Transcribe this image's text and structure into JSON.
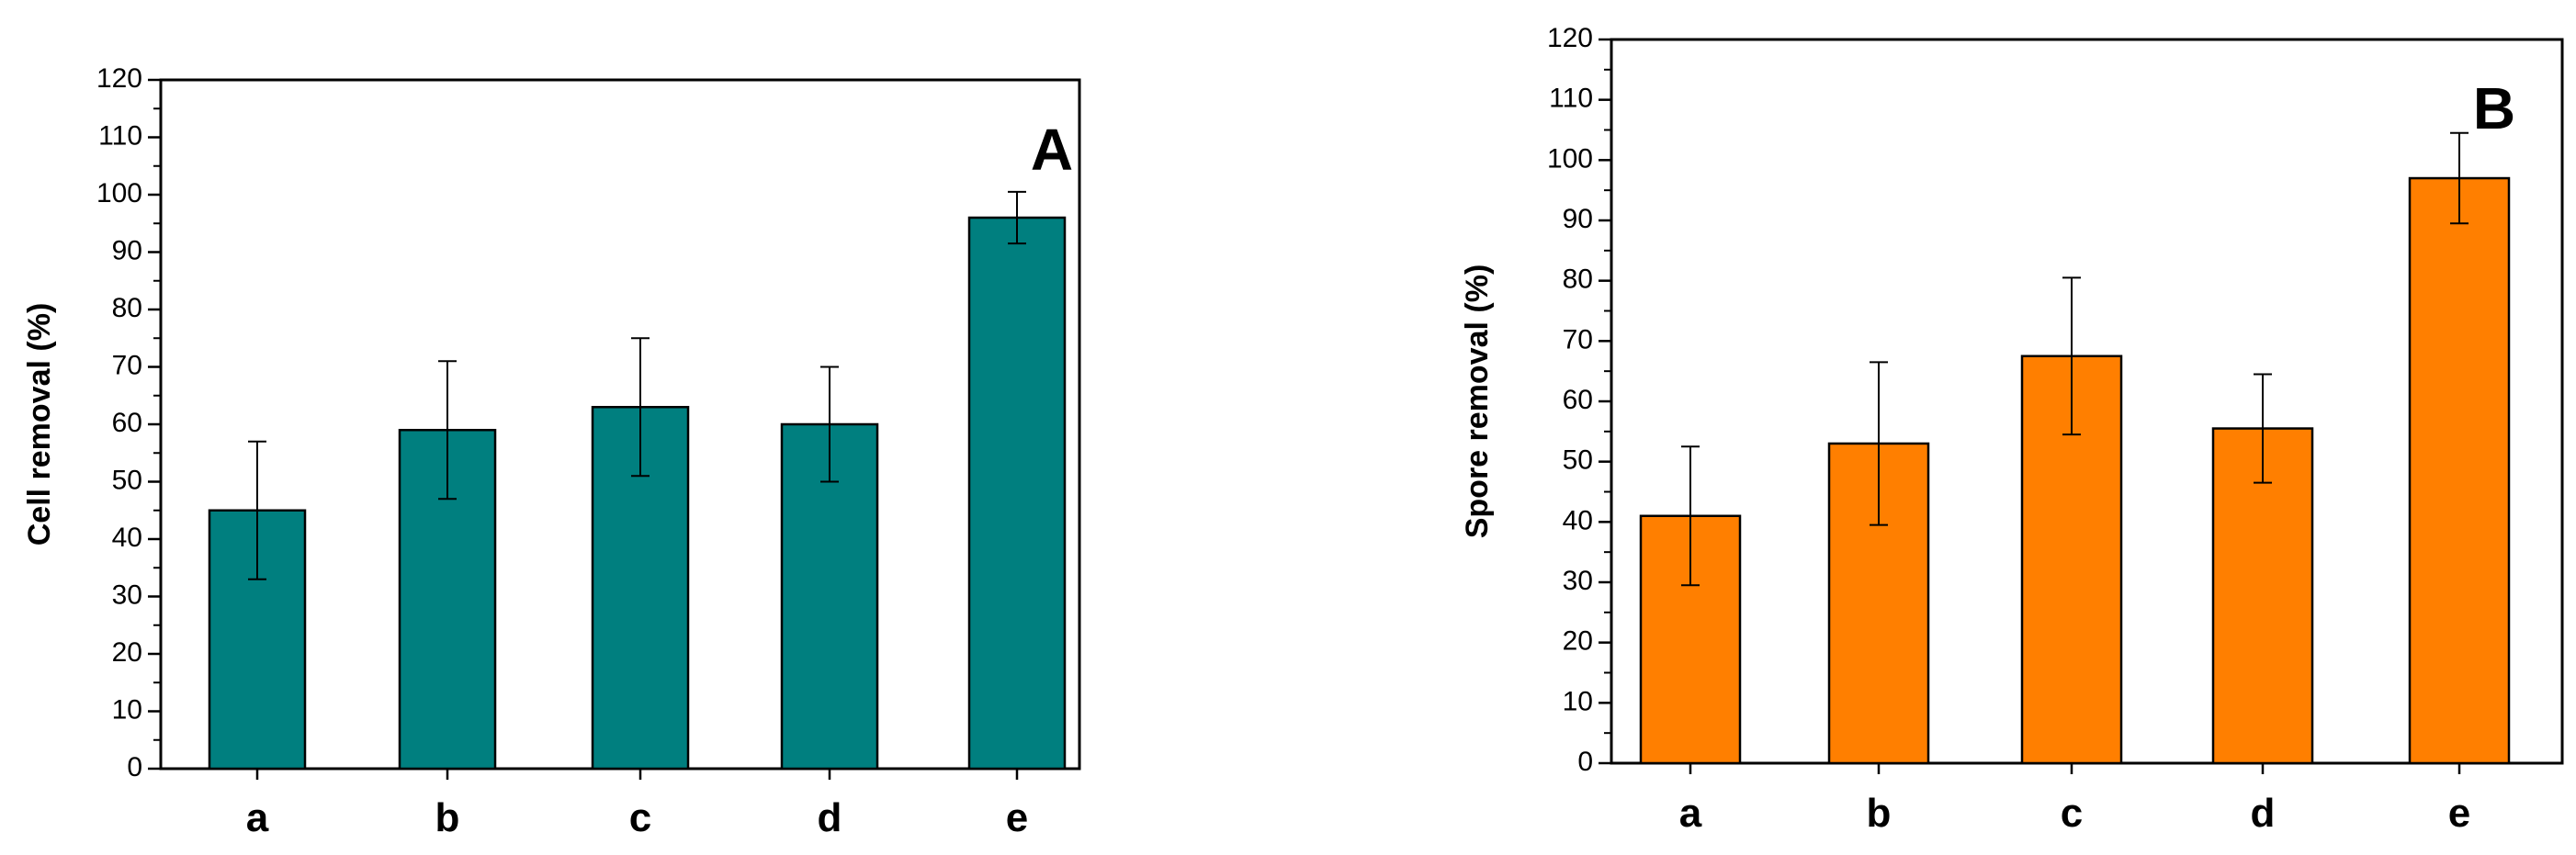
{
  "chart_data": [
    {
      "type": "bar",
      "panel": "A",
      "categories": [
        "a",
        "b",
        "c",
        "d",
        "e"
      ],
      "values": [
        45,
        59,
        63,
        60,
        96
      ],
      "errors": [
        12,
        12,
        12,
        10,
        4.5
      ],
      "ylabel": "Cell removal (%)",
      "xlabel": "",
      "ylim": [
        0,
        120
      ],
      "yticks": [
        0,
        10,
        20,
        30,
        40,
        50,
        60,
        70,
        80,
        90,
        100,
        110,
        120
      ],
      "bar_color": "#007F7F"
    },
    {
      "type": "bar",
      "panel": "B",
      "categories": [
        "a",
        "b",
        "c",
        "d",
        "e"
      ],
      "values": [
        41,
        53,
        67.5,
        55.5,
        97
      ],
      "errors": [
        11.5,
        13.5,
        13,
        9,
        7.5
      ],
      "ylabel": "Spore removal (%)",
      "xlabel": "",
      "ylim": [
        0,
        120
      ],
      "yticks": [
        0,
        10,
        20,
        30,
        40,
        50,
        60,
        70,
        80,
        90,
        100,
        110,
        120
      ],
      "bar_color": "#FF7F00"
    }
  ]
}
